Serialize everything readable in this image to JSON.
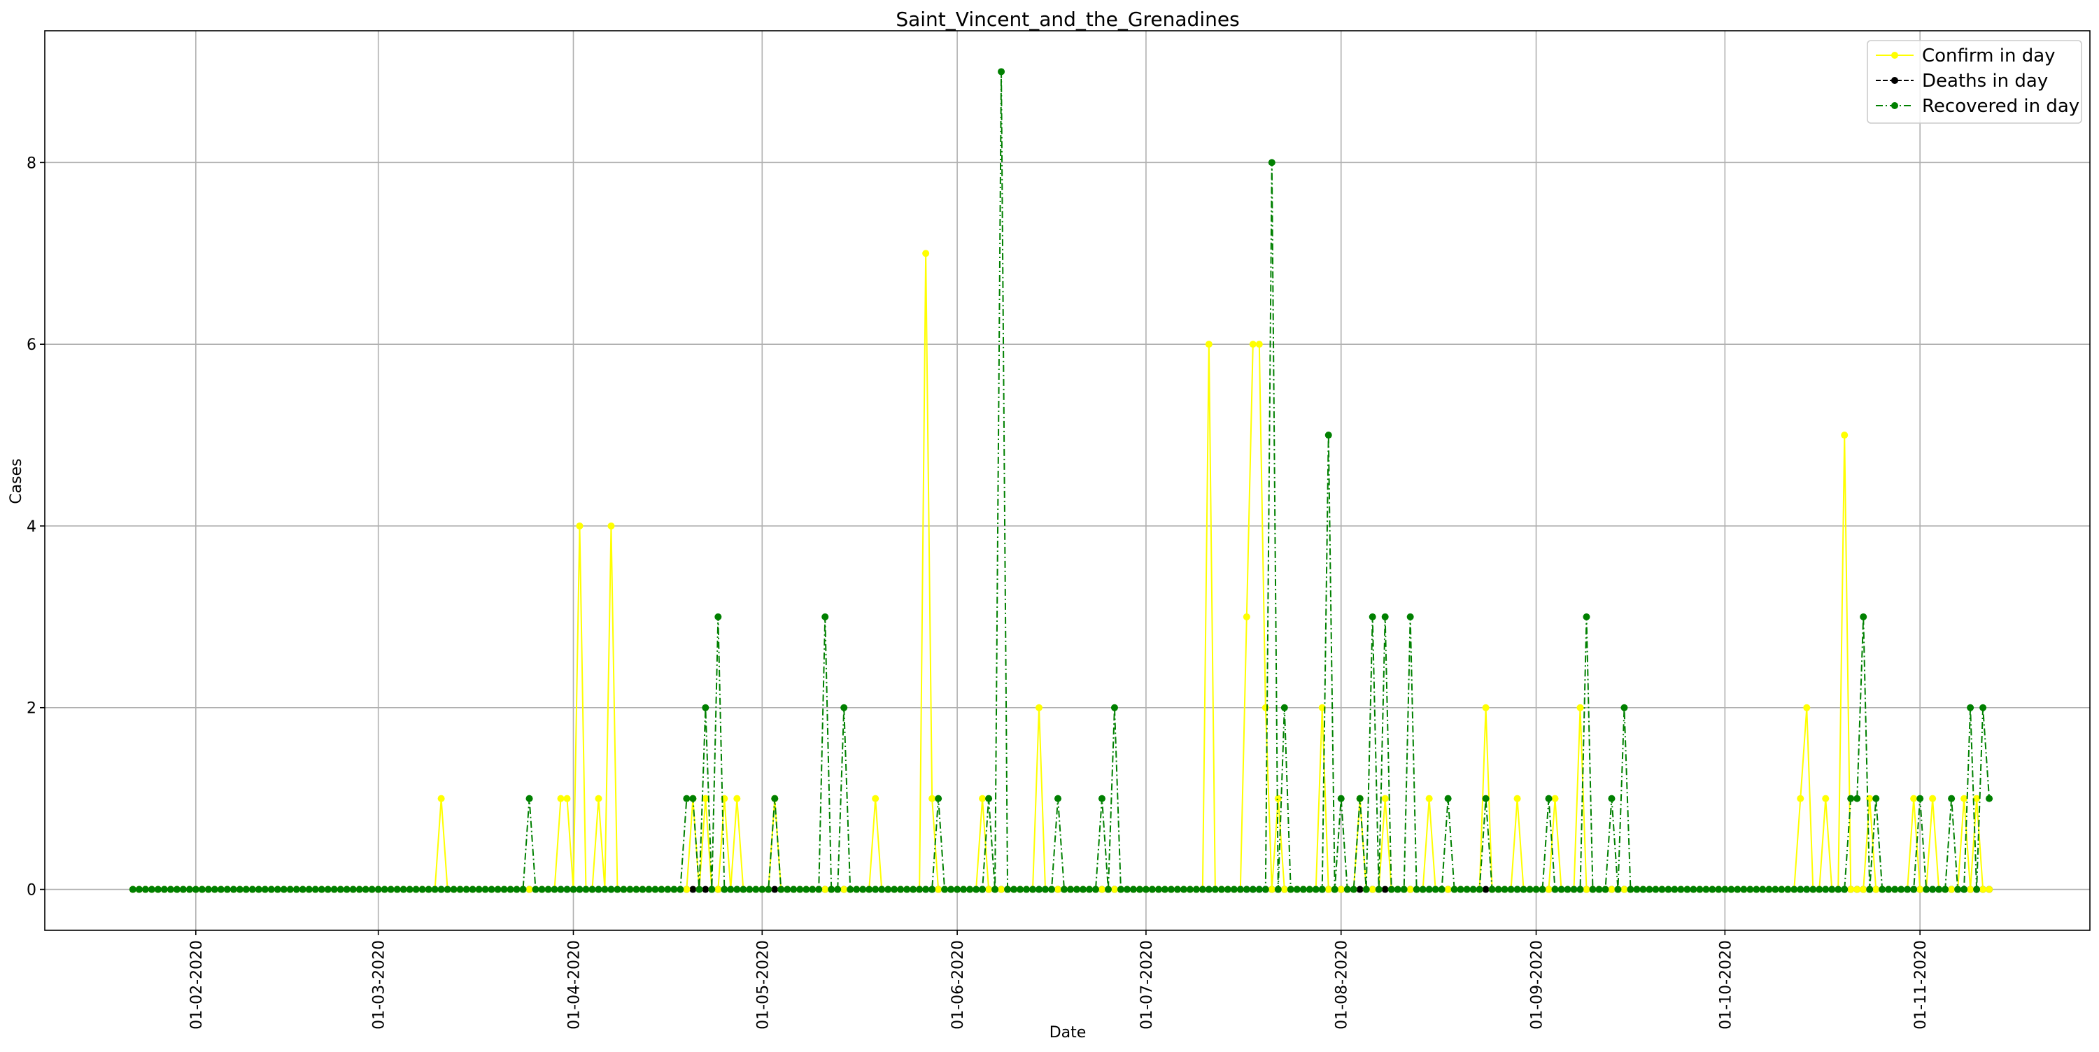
{
  "chart_data": {
    "type": "line",
    "title": "Saint_Vincent_and_the_Grenadines",
    "xlabel": "Date",
    "ylabel": "Cases",
    "start_date": "2020-01-22",
    "end_date": "2020-11-12",
    "xlim": [
      "2020-01-08",
      "2020-11-28"
    ],
    "ylim": [
      -0.45,
      9.45
    ],
    "y_ticks": [
      0,
      2,
      4,
      6,
      8
    ],
    "x_ticks": [
      {
        "date": "2020-02-01",
        "label": "01-02-2020"
      },
      {
        "date": "2020-03-01",
        "label": "01-03-2020"
      },
      {
        "date": "2020-04-01",
        "label": "01-04-2020"
      },
      {
        "date": "2020-05-01",
        "label": "01-05-2020"
      },
      {
        "date": "2020-06-01",
        "label": "01-06-2020"
      },
      {
        "date": "2020-07-01",
        "label": "01-07-2020"
      },
      {
        "date": "2020-08-01",
        "label": "01-08-2020"
      },
      {
        "date": "2020-09-01",
        "label": "01-09-2020"
      },
      {
        "date": "2020-10-01",
        "label": "01-10-2020"
      },
      {
        "date": "2020-11-01",
        "label": "01-11-2020"
      }
    ],
    "grid": true,
    "legend_position": "top-right",
    "series": [
      {
        "name": "Confirm in day",
        "color": "#ffff00",
        "dash": "solid",
        "nonzero": {
          "2020-03-11": 1,
          "2020-03-30": 1,
          "2020-03-31": 1,
          "2020-04-02": 4,
          "2020-04-05": 1,
          "2020-04-07": 4,
          "2020-04-20": 1,
          "2020-04-22": 1,
          "2020-04-25": 1,
          "2020-04-27": 1,
          "2020-05-03": 1,
          "2020-05-19": 1,
          "2020-05-27": 7,
          "2020-05-28": 1,
          "2020-06-05": 1,
          "2020-06-14": 2,
          "2020-07-11": 6,
          "2020-07-17": 3,
          "2020-07-18": 6,
          "2020-07-19": 6,
          "2020-07-20": 2,
          "2020-07-22": 1,
          "2020-07-29": 2,
          "2020-08-04": 1,
          "2020-08-08": 1,
          "2020-08-15": 1,
          "2020-08-24": 2,
          "2020-08-29": 1,
          "2020-09-04": 1,
          "2020-09-08": 2,
          "2020-10-13": 1,
          "2020-10-14": 2,
          "2020-10-17": 1,
          "2020-10-20": 5,
          "2020-10-24": 1,
          "2020-10-31": 1,
          "2020-11-03": 1,
          "2020-11-08": 1,
          "2020-11-10": 1
        }
      },
      {
        "name": "Deaths in day",
        "color": "#000000",
        "dash": "dashed",
        "nonzero": {}
      },
      {
        "name": "Recovered in day",
        "color": "#008000",
        "dash": "dashdot",
        "nonzero": {
          "2020-03-25": 1,
          "2020-04-19": 1,
          "2020-04-20": 1,
          "2020-04-22": 2,
          "2020-04-24": 3,
          "2020-05-03": 1,
          "2020-05-11": 3,
          "2020-05-14": 2,
          "2020-05-29": 1,
          "2020-06-06": 1,
          "2020-06-08": 9,
          "2020-06-17": 1,
          "2020-06-24": 1,
          "2020-06-26": 2,
          "2020-07-21": 8,
          "2020-07-23": 2,
          "2020-07-30": 5,
          "2020-08-01": 1,
          "2020-08-04": 1,
          "2020-08-06": 3,
          "2020-08-08": 3,
          "2020-08-12": 3,
          "2020-08-18": 1,
          "2020-08-24": 1,
          "2020-09-03": 1,
          "2020-09-09": 3,
          "2020-09-13": 1,
          "2020-09-15": 2,
          "2020-10-21": 1,
          "2020-10-22": 1,
          "2020-10-23": 3,
          "2020-10-25": 1,
          "2020-11-01": 1,
          "2020-11-06": 1,
          "2020-11-09": 2,
          "2020-11-11": 2,
          "2020-11-12": 1
        }
      }
    ]
  }
}
